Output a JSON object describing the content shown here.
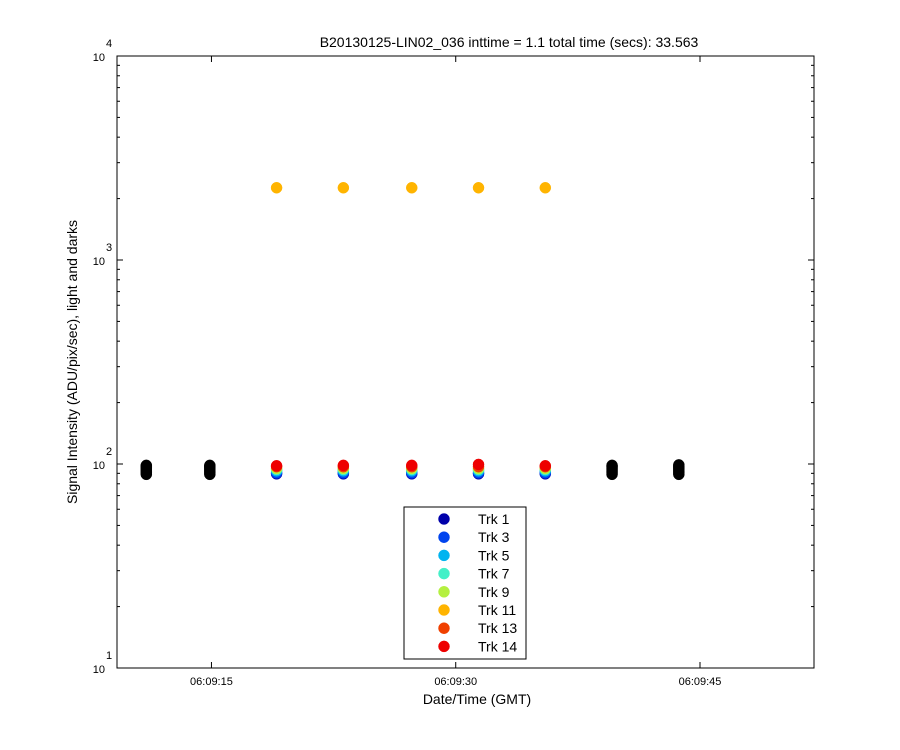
{
  "chart_data": {
    "type": "scatter",
    "title": "B20130125-LIN02_036 inttime = 1.1 total time (secs): 33.563",
    "xlabel": "Date/Time (GMT)",
    "ylabel": "Signal Intensity (ADU/pix/sec), light and darks",
    "x_scale": "time",
    "y_scale": "log",
    "xlim": [
      "06:09:09.2",
      "06:09:52.0"
    ],
    "ylim": [
      10,
      10000
    ],
    "grid": false,
    "legend_position": "bottom-center",
    "x_ticks": [
      "06:09:15",
      "06:09:30",
      "06:09:45"
    ],
    "y_ticks": [
      {
        "value": 10,
        "base": "10",
        "exp": "1"
      },
      {
        "value": 100,
        "base": "10",
        "exp": "2"
      },
      {
        "value": 1000,
        "base": "10",
        "exp": "3"
      },
      {
        "value": 10000,
        "base": "10",
        "exp": "4"
      }
    ],
    "series": [
      {
        "name": "Trk 1",
        "color": "#0000aa",
        "x": [
          "06:09:19.0",
          "06:09:23.1",
          "06:09:27.3",
          "06:09:31.4",
          "06:09:35.5"
        ],
        "y": [
          89.5,
          89.5,
          89.5,
          89.5,
          89.5
        ]
      },
      {
        "name": "Trk 3",
        "color": "#0044ee",
        "x": [
          "06:09:19.0",
          "06:09:23.1",
          "06:09:27.3",
          "06:09:31.4",
          "06:09:35.5"
        ],
        "y": [
          90.5,
          90.5,
          90.5,
          90.5,
          90.5
        ]
      },
      {
        "name": "Trk 5",
        "color": "#00b4f0",
        "x": [
          "06:09:19.0",
          "06:09:23.1",
          "06:09:27.3",
          "06:09:31.4",
          "06:09:35.5"
        ],
        "y": [
          92.5,
          92.5,
          92.5,
          92.5,
          92.5
        ]
      },
      {
        "name": "Trk 7",
        "color": "#44f0c8",
        "x": [
          "06:09:19.0",
          "06:09:23.1",
          "06:09:27.3",
          "06:09:31.4",
          "06:09:35.5"
        ],
        "y": [
          94,
          94,
          94,
          94,
          94
        ]
      },
      {
        "name": "Trk 9",
        "color": "#b4f040",
        "x": [
          "06:09:19.0",
          "06:09:23.1",
          "06:09:27.3",
          "06:09:31.4",
          "06:09:35.5"
        ],
        "y": [
          95,
          95,
          95,
          95,
          95
        ]
      },
      {
        "name": "Trk 11",
        "color": "#ffb400",
        "x": [
          "06:09:19.0",
          "06:09:23.1",
          "06:09:27.3",
          "06:09:31.4",
          "06:09:35.5"
        ],
        "y": [
          2260,
          2260,
          2260,
          2260,
          2260
        ]
      },
      {
        "name": "Trk 13",
        "color": "#f04000",
        "x": [
          "06:09:19.0",
          "06:09:23.1",
          "06:09:27.3",
          "06:09:31.4",
          "06:09:35.5"
        ],
        "y": [
          97,
          97,
          97,
          97,
          97
        ]
      },
      {
        "name": "Trk 14",
        "color": "#ee0000",
        "x": [
          "06:09:19.0",
          "06:09:23.1",
          "06:09:27.3",
          "06:09:31.4",
          "06:09:35.5"
        ],
        "y": [
          98,
          98.5,
          98.5,
          99.5,
          98
        ]
      },
      {
        "color": "#000000",
        "x": [
          "06:09:11.0",
          "06:09:11.0",
          "06:09:11.0",
          "06:09:11.0",
          "06:09:11.0",
          "06:09:11.0",
          "06:09:11.0",
          "06:09:11.0",
          "06:09:14.9",
          "06:09:14.9",
          "06:09:14.9",
          "06:09:14.9",
          "06:09:14.9",
          "06:09:14.9",
          "06:09:14.9",
          "06:09:14.9",
          "06:09:39.6",
          "06:09:39.6",
          "06:09:39.6",
          "06:09:39.6",
          "06:09:39.6",
          "06:09:39.6",
          "06:09:39.6",
          "06:09:39.6",
          "06:09:43.7",
          "06:09:43.7",
          "06:09:43.7",
          "06:09:43.7",
          "06:09:43.7",
          "06:09:43.7",
          "06:09:43.7",
          "06:09:43.7"
        ],
        "y": [
          89,
          90.5,
          92,
          93.5,
          95,
          96.5,
          97.5,
          98.5,
          89,
          90.5,
          92,
          93.5,
          95,
          96.5,
          97.5,
          98.5,
          89,
          90.5,
          92,
          93.5,
          95,
          96.5,
          97.5,
          98.5,
          89,
          90.5,
          92,
          93.5,
          95,
          96.5,
          97.5,
          99
        ]
      }
    ]
  }
}
